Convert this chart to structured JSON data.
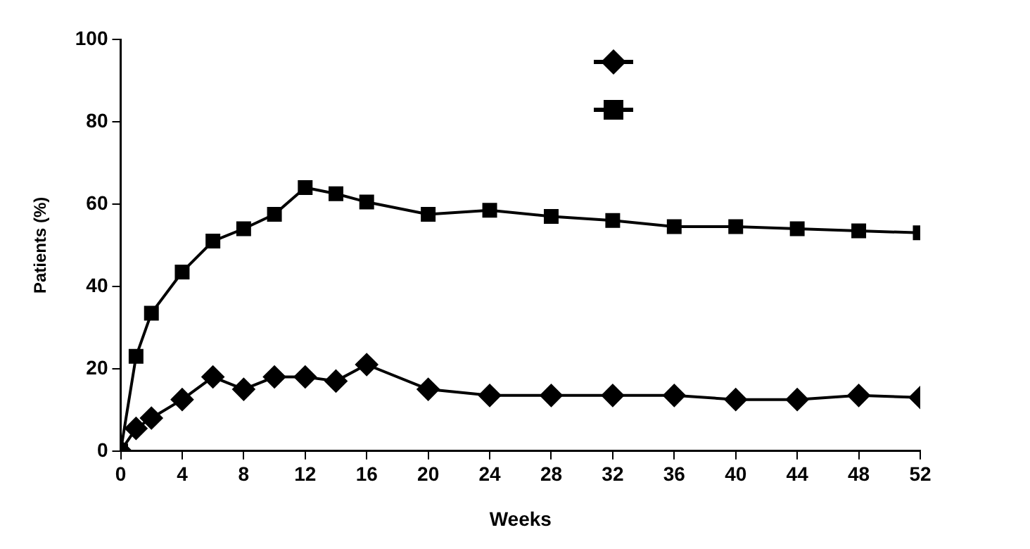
{
  "chart_data": {
    "type": "line",
    "xlabel": "Weeks",
    "ylabel": "Patients (%)",
    "xlim": [
      0,
      52
    ],
    "xticks": [
      0,
      4,
      8,
      12,
      16,
      20,
      24,
      28,
      32,
      36,
      40,
      44,
      48,
      52
    ],
    "ylim": [
      0,
      100
    ],
    "yticks": [
      0,
      20,
      40,
      60,
      80,
      100
    ],
    "grid": false,
    "series": [
      {
        "color": "#000000",
        "marker": "diamond",
        "x": [
          0,
          1,
          2,
          4,
          6,
          8,
          10,
          12,
          14,
          16,
          20,
          24,
          28,
          32,
          36,
          40,
          44,
          48,
          52
        ],
        "values": [
          0,
          5.5,
          8,
          12.5,
          18,
          15,
          18,
          18,
          17,
          21,
          15,
          13.5,
          13.5,
          13.5,
          13.5,
          12.5,
          12.5,
          13.5,
          13
        ]
      },
      {
        "color": "#000000",
        "marker": "square",
        "x": [
          0,
          1,
          2,
          4,
          6,
          8,
          10,
          12,
          14,
          16,
          20,
          24,
          28,
          32,
          36,
          40,
          44,
          48,
          52
        ],
        "values": [
          0,
          23,
          33.5,
          43.5,
          51,
          54,
          57.5,
          64,
          62.5,
          60.5,
          57.5,
          58.5,
          57,
          56,
          54.5,
          54.5,
          54,
          53.5,
          53
        ]
      }
    ]
  }
}
